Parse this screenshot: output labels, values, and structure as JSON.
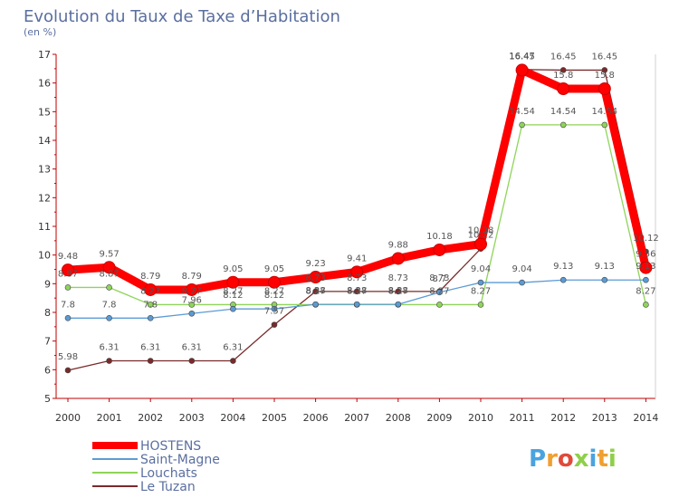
{
  "chart_data": {
    "type": "line",
    "title": "Evolution du Taux de Taxe d’Habitation",
    "subtitle": "(en %)",
    "ylim": [
      5,
      17
    ],
    "yticks": [
      5,
      6,
      7,
      8,
      9,
      10,
      11,
      12,
      13,
      14,
      15,
      16,
      17
    ],
    "grid": false,
    "legend_position": "bottom-left",
    "categories": [
      "2000",
      "2001",
      "2002",
      "2003",
      "2004",
      "2005",
      "2006",
      "2007",
      "2008",
      "2009",
      "2010",
      "2011",
      "2012",
      "2013",
      "2014"
    ],
    "series": [
      {
        "name": "HOSTENS",
        "color": "#ff0000",
        "values": [
          9.48,
          9.57,
          8.79,
          8.79,
          9.05,
          9.05,
          9.23,
          9.41,
          9.88,
          10.18,
          10.38,
          16.45,
          15.8,
          15.8,
          9.56
        ]
      },
      {
        "name": "Saint-Magne",
        "color": "#5b9bd5",
        "values": [
          7.8,
          7.8,
          7.8,
          7.96,
          8.12,
          8.12,
          8.28,
          8.28,
          8.28,
          8.7,
          9.04,
          9.04,
          9.13,
          9.13,
          9.13
        ]
      },
      {
        "name": "Louchats",
        "color": "#8fd45a",
        "values": [
          8.87,
          8.87,
          8.27,
          8.27,
          8.27,
          8.27,
          8.27,
          8.27,
          8.27,
          8.27,
          8.27,
          14.54,
          14.54,
          14.54,
          8.27
        ]
      },
      {
        "name": "Le Tuzan",
        "color": "#7a2a2a",
        "values": [
          5.98,
          6.31,
          6.31,
          6.31,
          6.31,
          7.57,
          8.73,
          8.73,
          8.73,
          8.73,
          10.22,
          16.47,
          16.45,
          16.45,
          10.12
        ]
      }
    ]
  },
  "watermark": "Proxiti"
}
